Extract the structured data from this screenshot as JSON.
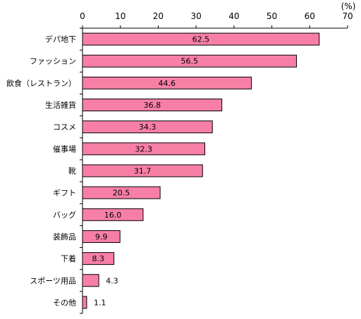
{
  "chart_data": {
    "type": "bar",
    "orientation": "horizontal",
    "unit": "(%)",
    "categories": [
      "デパ地下",
      "ファッション",
      "飲食（レストラン）",
      "生活雑貨",
      "コスメ",
      "催事場",
      "靴",
      "ギフト",
      "バッグ",
      "装飾品",
      "下着",
      "スポーツ用品",
      "その他"
    ],
    "values": [
      62.5,
      56.5,
      44.6,
      36.8,
      34.3,
      32.3,
      31.7,
      20.5,
      16.0,
      9.9,
      8.3,
      4.3,
      1.1
    ],
    "value_labels": [
      "62.5",
      "56.5",
      "44.6",
      "36.8",
      "34.3",
      "32.3",
      "31.7",
      "20.5",
      "16.0",
      "9.9",
      "8.3",
      "4.3",
      "1.1"
    ],
    "xlim": [
      0,
      70
    ],
    "xticks": [
      0,
      10,
      20,
      30,
      40,
      50,
      60,
      70
    ],
    "grid": false,
    "legend": "none",
    "title": "",
    "xlabel": "",
    "ylabel": "",
    "colors": {
      "bar_fill": "#f77fa6",
      "bar_stroke": "#000000",
      "axis": "#000000"
    }
  }
}
